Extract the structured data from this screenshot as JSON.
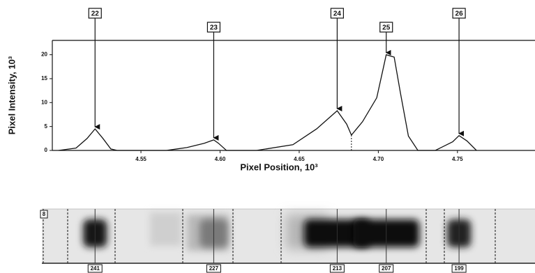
{
  "chart_data": {
    "type": "line",
    "xlabel": "Pixel Position, 10³",
    "ylabel": "Pixel Intensity, 10³",
    "x": [
      4.498,
      4.509,
      4.516,
      4.521,
      4.526,
      4.531,
      4.535,
      4.566,
      4.579,
      4.59,
      4.596,
      4.599,
      4.604,
      4.623,
      4.646,
      4.661,
      4.674,
      4.68,
      4.683,
      4.69,
      4.699,
      4.703,
      4.705,
      4.71,
      4.714,
      4.719,
      4.725,
      4.736,
      4.747,
      4.751,
      4.756,
      4.762
    ],
    "values": [
      0,
      0.5,
      2.5,
      4.5,
      2.5,
      0.3,
      0,
      0,
      0.6,
      1.5,
      2.2,
      1.5,
      0,
      0,
      1.2,
      4.5,
      8.3,
      5.5,
      3.2,
      6,
      11,
      17,
      20,
      19.5,
      12,
      3,
      0,
      0,
      1.8,
      3.1,
      2,
      0
    ],
    "color": "#111111",
    "xlim": [
      4.494,
      4.799
    ],
    "ylim": [
      0,
      23
    ],
    "xticks": [
      4.55,
      {
        "value": 4.6,
        "label": "4.60"
      },
      4.65,
      {
        "value": 4.7,
        "label": "4.70"
      },
      4.75
    ],
    "yticks": [
      0,
      5,
      10,
      15,
      20
    ],
    "annotations": [
      {
        "text": "22",
        "x": 4.521,
        "y": 4.5
      },
      {
        "text": "23",
        "x": 4.596,
        "y": 2.2
      },
      {
        "text": "24",
        "x": 4.674,
        "y": 8.3
      },
      {
        "text": "25",
        "x": 4.705,
        "y": 20
      },
      {
        "text": "26",
        "x": 4.751,
        "y": 3.1
      }
    ],
    "gel": {
      "lane_label": "8",
      "band_labels": [
        "241",
        "227",
        "213",
        "207",
        "199"
      ]
    }
  }
}
